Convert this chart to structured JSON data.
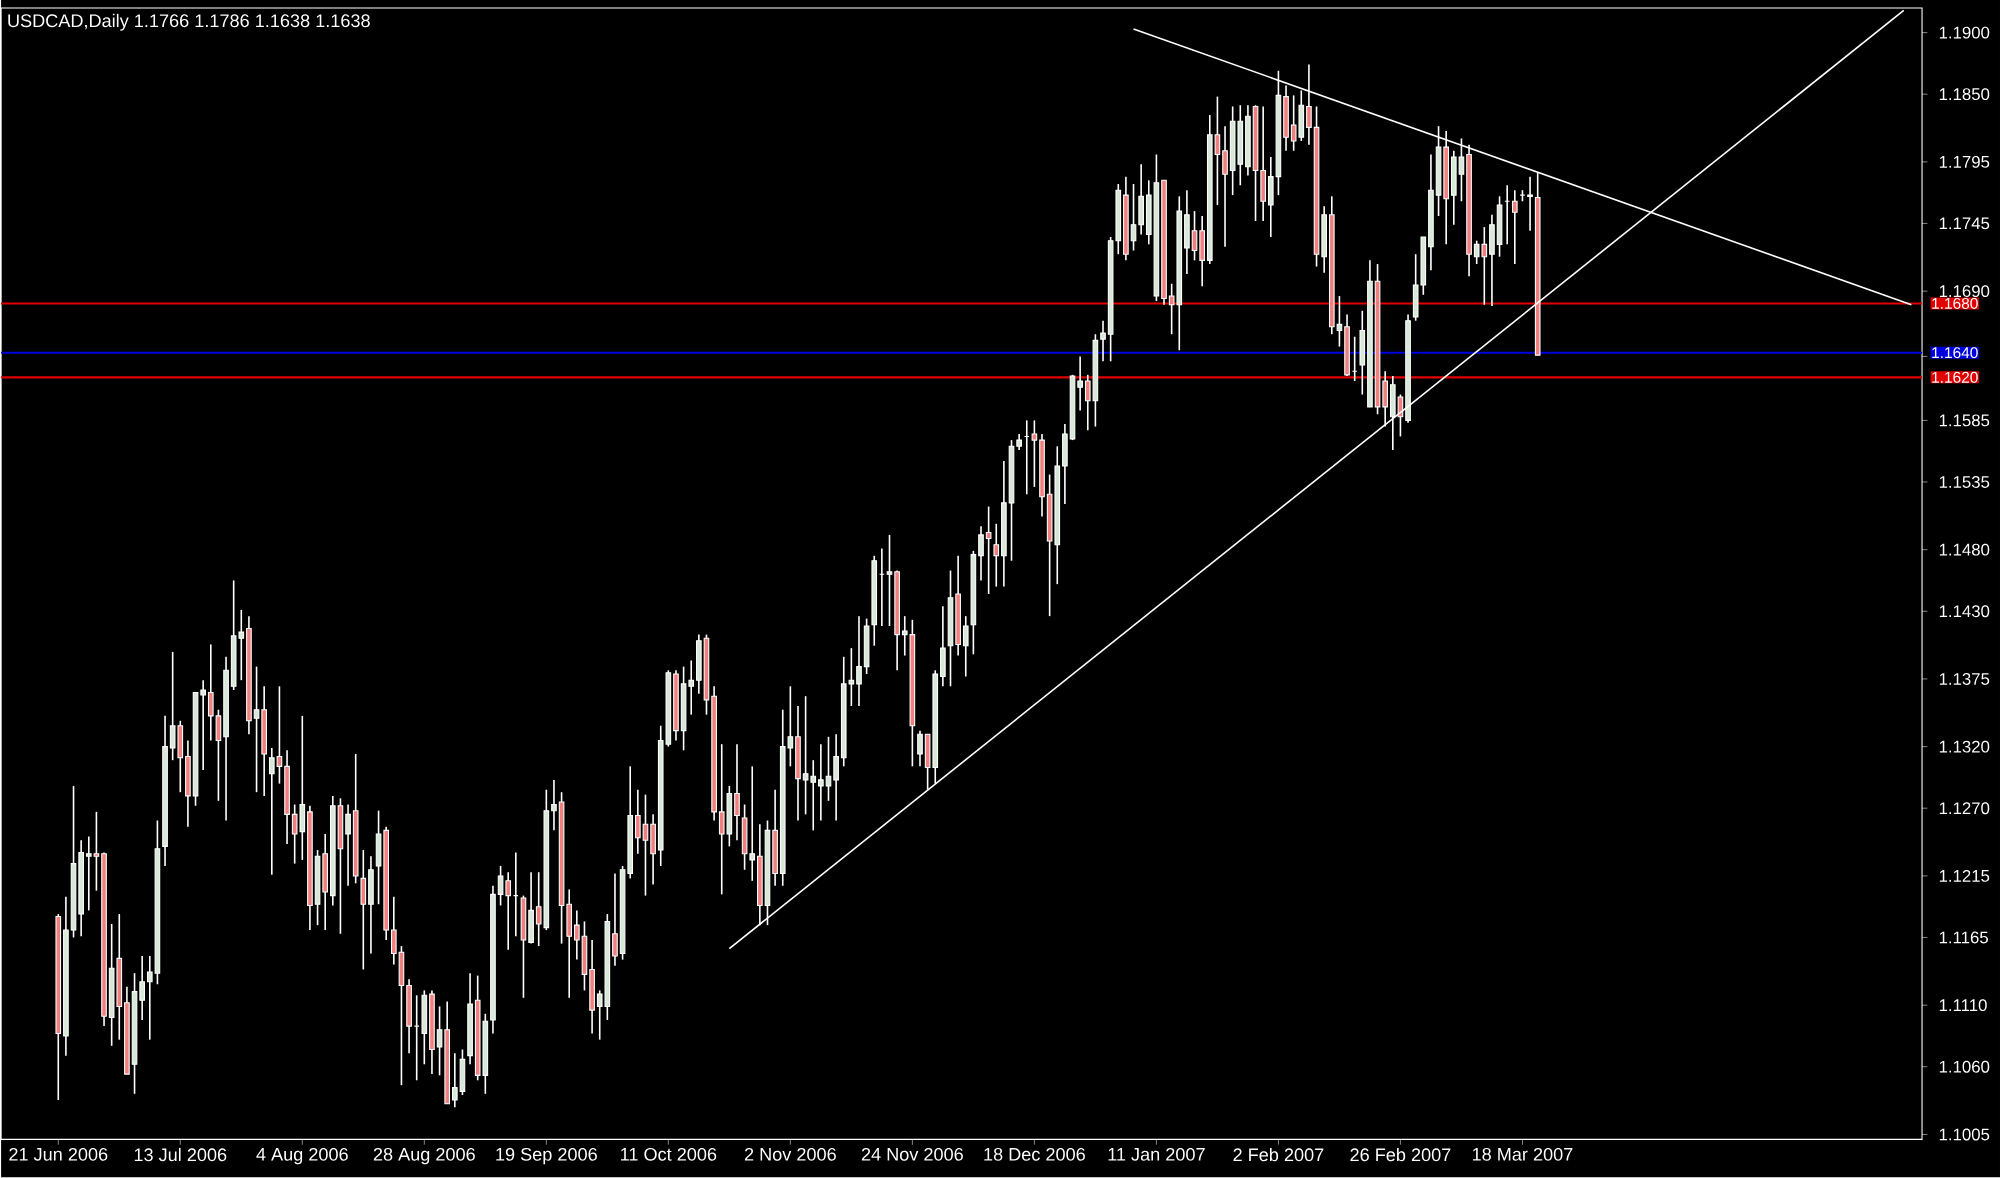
{
  "chart_data": {
    "type": "candlestick",
    "title": "USDCAD,Daily  1.1766 1.1786 1.1638 1.1638",
    "categories": [
      "21 Jun 2006",
      null,
      null,
      null,
      null,
      null,
      null,
      null,
      null,
      null,
      null,
      null,
      null,
      null,
      null,
      null,
      "13 Jul 2006",
      null,
      null,
      null,
      null,
      null,
      null,
      null,
      null,
      null,
      null,
      null,
      null,
      null,
      null,
      null,
      "4 Aug 2006",
      null,
      null,
      null,
      null,
      null,
      null,
      null,
      null,
      null,
      null,
      null,
      null,
      null,
      null,
      null,
      "28 Aug 2006",
      null,
      null,
      null,
      null,
      null,
      null,
      null,
      null,
      null,
      null,
      null,
      null,
      null,
      null,
      null,
      "19 Sep 2006",
      null,
      null,
      null,
      null,
      null,
      null,
      null,
      null,
      null,
      null,
      null,
      null,
      null,
      null,
      null,
      "11 Oct 2006",
      null,
      null,
      null,
      null,
      null,
      null,
      null,
      null,
      null,
      null,
      null,
      null,
      null,
      null,
      null,
      "2 Nov 2006",
      null,
      null,
      null,
      null,
      null,
      null,
      null,
      null,
      null,
      null,
      null,
      null,
      null,
      null,
      null,
      "24 Nov 2006",
      null,
      null,
      null,
      null,
      null,
      null,
      null,
      null,
      null,
      null,
      null,
      null,
      null,
      null,
      null,
      "18 Dec 2006",
      null,
      null,
      null,
      null,
      null,
      null,
      null,
      null,
      null,
      null,
      null,
      null,
      null,
      null,
      null,
      "11 Jan 2007",
      null,
      null,
      null,
      null,
      null,
      null,
      null,
      null,
      null,
      null,
      null,
      null,
      null,
      null,
      null,
      "2 Feb 2007",
      null,
      null,
      null,
      null,
      null,
      null,
      null,
      null,
      null,
      null,
      null,
      null,
      null,
      null,
      null,
      "26 Feb 2007",
      null,
      null,
      null,
      null,
      null,
      null,
      null,
      null,
      null,
      null,
      null,
      null,
      null,
      null,
      null,
      "18 Mar 2007",
      null,
      null,
      null,
      null,
      null,
      null,
      null,
      null,
      null,
      null,
      null,
      null,
      null,
      null,
      null,
      null,
      null,
      null,
      null,
      null,
      null,
      null,
      null,
      null,
      null,
      null,
      null,
      null,
      null,
      null,
      null,
      null,
      null,
      null,
      null,
      null,
      null,
      null,
      null,
      null,
      null,
      null,
      null,
      null,
      null,
      null,
      null,
      null,
      null,
      null,
      null
    ],
    "ohlc": [
      [
        1.1182,
        1.1184,
        1.1033,
        1.1087
      ],
      [
        1.1085,
        1.1198,
        1.1069,
        1.1171
      ],
      [
        1.1171,
        1.1288,
        1.1165,
        1.1225
      ],
      [
        1.1184,
        1.1244,
        1.1166,
        1.1234
      ],
      [
        1.1231,
        1.1247,
        1.1187,
        1.1233
      ],
      [
        1.1233,
        1.1267,
        1.1203,
        1.1231
      ],
      [
        1.1233,
        1.1234,
        1.1093,
        1.1101
      ],
      [
        1.11,
        1.1176,
        1.1077,
        1.114
      ],
      [
        1.1148,
        1.1184,
        1.1082,
        1.1109
      ],
      [
        1.1112,
        1.1125,
        1.1054,
        1.1054
      ],
      [
        1.1062,
        1.1136,
        1.1038,
        1.1121
      ],
      [
        1.1114,
        1.115,
        1.1098,
        1.1129
      ],
      [
        1.1129,
        1.115,
        1.1082,
        1.1137
      ],
      [
        1.1136,
        1.126,
        1.1127,
        1.1237
      ],
      [
        1.1239,
        1.1345,
        1.1223,
        1.132
      ],
      [
        1.1319,
        1.1397,
        1.1309,
        1.1337
      ],
      [
        1.1337,
        1.1341,
        1.1283,
        1.1311
      ],
      [
        1.1312,
        1.1325,
        1.1255,
        1.128
      ],
      [
        1.128,
        1.1364,
        1.1272,
        1.1364
      ],
      [
        1.1362,
        1.1374,
        1.1301,
        1.1366
      ],
      [
        1.1364,
        1.1403,
        1.1325,
        1.1345
      ],
      [
        1.1345,
        1.135,
        1.1276,
        1.1325
      ],
      [
        1.1328,
        1.1393,
        1.126,
        1.1382
      ],
      [
        1.1369,
        1.1455,
        1.1366,
        1.141
      ],
      [
        1.1408,
        1.1431,
        1.1374,
        1.1413
      ],
      [
        1.1416,
        1.1426,
        1.133,
        1.1341
      ],
      [
        1.1343,
        1.1385,
        1.1283,
        1.135
      ],
      [
        1.135,
        1.1369,
        1.128,
        1.1314
      ],
      [
        1.1298,
        1.1319,
        1.1216,
        1.1311
      ],
      [
        1.1312,
        1.1369,
        1.129,
        1.1304
      ],
      [
        1.1304,
        1.1317,
        1.1241,
        1.1265
      ],
      [
        1.1265,
        1.1273,
        1.1225,
        1.1249
      ],
      [
        1.1251,
        1.1345,
        1.1228,
        1.1273
      ],
      [
        1.1267,
        1.1272,
        1.1171,
        1.1191
      ],
      [
        1.1192,
        1.1236,
        1.1175,
        1.1231
      ],
      [
        1.1233,
        1.1249,
        1.1171,
        1.1202
      ],
      [
        1.1199,
        1.128,
        1.1191,
        1.1272
      ],
      [
        1.1272,
        1.1278,
        1.1168,
        1.1237
      ],
      [
        1.1249,
        1.1273,
        1.1207,
        1.1265
      ],
      [
        1.1268,
        1.1314,
        1.1209,
        1.1215
      ],
      [
        1.1213,
        1.1236,
        1.1139,
        1.1192
      ],
      [
        1.1192,
        1.1231,
        1.1152,
        1.122
      ],
      [
        1.1223,
        1.1268,
        1.1192,
        1.1249
      ],
      [
        1.1252,
        1.1255,
        1.1163,
        1.1171
      ],
      [
        1.1171,
        1.1198,
        1.1143,
        1.1152
      ],
      [
        1.1153,
        1.1158,
        1.1045,
        1.1126
      ],
      [
        1.1126,
        1.1131,
        1.1071,
        1.1093
      ],
      [
        1.1093,
        1.1118,
        1.1049,
        1.1093
      ],
      [
        1.1087,
        1.1122,
        1.1062,
        1.1118
      ],
      [
        1.1119,
        1.1122,
        1.1054,
        1.1074
      ],
      [
        1.1076,
        1.1109,
        1.1053,
        1.109
      ],
      [
        1.109,
        1.1113,
        1.103,
        1.103
      ],
      [
        1.1033,
        1.1071,
        1.1027,
        1.1043
      ],
      [
        1.104,
        1.1074,
        1.1037,
        1.1066
      ],
      [
        1.1069,
        1.1136,
        1.1062,
        1.1111
      ],
      [
        1.1114,
        1.1134,
        1.1049,
        1.1053
      ],
      [
        1.1053,
        1.1103,
        1.1038,
        1.1097
      ],
      [
        1.1098,
        1.1207,
        1.1087,
        1.12
      ],
      [
        1.12,
        1.1223,
        1.1191,
        1.1215
      ],
      [
        1.1211,
        1.1218,
        1.1155,
        1.1199
      ],
      [
        1.1199,
        1.1234,
        1.1166,
        1.1199
      ],
      [
        1.1197,
        1.1199,
        1.1116,
        1.1163
      ],
      [
        1.1161,
        1.1218,
        1.116,
        1.1187
      ],
      [
        1.119,
        1.1218,
        1.1158,
        1.1176
      ],
      [
        1.1173,
        1.1285,
        1.1171,
        1.1268
      ],
      [
        1.1268,
        1.1293,
        1.1252,
        1.1273
      ],
      [
        1.1275,
        1.1283,
        1.116,
        1.1191
      ],
      [
        1.1192,
        1.1204,
        1.1116,
        1.1166
      ],
      [
        1.1175,
        1.1187,
        1.1147,
        1.1163
      ],
      [
        1.1166,
        1.1178,
        1.1122,
        1.1135
      ],
      [
        1.1139,
        1.1163,
        1.1087,
        1.1106
      ],
      [
        1.1109,
        1.1122,
        1.1082,
        1.1119
      ],
      [
        1.1109,
        1.1184,
        1.1098,
        1.1178
      ],
      [
        1.1168,
        1.1217,
        1.1142,
        1.115
      ],
      [
        1.1152,
        1.1223,
        1.1147,
        1.122
      ],
      [
        1.1217,
        1.1304,
        1.1213,
        1.1264
      ],
      [
        1.1264,
        1.1285,
        1.1233,
        1.1246
      ],
      [
        1.1257,
        1.1281,
        1.1199,
        1.1244
      ],
      [
        1.1257,
        1.1265,
        1.1208,
        1.1233
      ],
      [
        1.1236,
        1.1337,
        1.1223,
        1.1325
      ],
      [
        1.1322,
        1.1382,
        1.132,
        1.138
      ],
      [
        1.1379,
        1.1382,
        1.1325,
        1.1333
      ],
      [
        1.1333,
        1.1385,
        1.1317,
        1.1371
      ],
      [
        1.1369,
        1.139,
        1.1346,
        1.1374
      ],
      [
        1.1374,
        1.1411,
        1.1363,
        1.1406
      ],
      [
        1.1408,
        1.1411,
        1.1346,
        1.1358
      ],
      [
        1.1361,
        1.1369,
        1.126,
        1.1267
      ],
      [
        1.1267,
        1.1322,
        1.12,
        1.1249
      ],
      [
        1.1249,
        1.1288,
        1.1239,
        1.1282
      ],
      [
        1.1282,
        1.1322,
        1.1244,
        1.1264
      ],
      [
        1.1262,
        1.1273,
        1.122,
        1.1233
      ],
      [
        1.1228,
        1.1304,
        1.1211,
        1.1233
      ],
      [
        1.1231,
        1.1257,
        1.1175,
        1.1191
      ],
      [
        1.1191,
        1.126,
        1.1175,
        1.1252
      ],
      [
        1.1252,
        1.1285,
        1.1207,
        1.1217
      ],
      [
        1.1217,
        1.135,
        1.1207,
        1.132
      ],
      [
        1.1319,
        1.1369,
        1.1304,
        1.1328
      ],
      [
        1.1328,
        1.1353,
        1.126,
        1.1294
      ],
      [
        1.1293,
        1.1361,
        1.1265,
        1.1298
      ],
      [
        1.1291,
        1.1309,
        1.1252,
        1.1296
      ],
      [
        1.1288,
        1.1322,
        1.126,
        1.1293
      ],
      [
        1.1288,
        1.1328,
        1.1276,
        1.1296
      ],
      [
        1.1293,
        1.133,
        1.126,
        1.1312
      ],
      [
        1.1311,
        1.1393,
        1.1304,
        1.1371
      ],
      [
        1.1371,
        1.14,
        1.1353,
        1.1374
      ],
      [
        1.1371,
        1.1426,
        1.1353,
        1.1385
      ],
      [
        1.1385,
        1.1424,
        1.1379,
        1.1418
      ],
      [
        1.1419,
        1.1475,
        1.1402,
        1.1471
      ],
      [
        1.146,
        1.1481,
        1.1418,
        1.146
      ],
      [
        1.146,
        1.1492,
        1.1418,
        1.1462
      ],
      [
        1.1462,
        1.1463,
        1.1382,
        1.1411
      ],
      [
        1.1411,
        1.1426,
        1.1394,
        1.1414
      ],
      [
        1.1411,
        1.1423,
        1.1304,
        1.1337
      ],
      [
        1.1314,
        1.1333,
        1.1304,
        1.133
      ],
      [
        1.133,
        1.133,
        1.1285,
        1.1303
      ],
      [
        1.1303,
        1.1382,
        1.129,
        1.1379
      ],
      [
        1.1377,
        1.1434,
        1.1369,
        1.14
      ],
      [
        1.1402,
        1.1463,
        1.1369,
        1.1441
      ],
      [
        1.1444,
        1.1475,
        1.1394,
        1.1403
      ],
      [
        1.1402,
        1.1426,
        1.1377,
        1.1418
      ],
      [
        1.1419,
        1.1479,
        1.1395,
        1.1476
      ],
      [
        1.1475,
        1.1499,
        1.1455,
        1.1492
      ],
      [
        1.1494,
        1.1515,
        1.1444,
        1.1489
      ],
      [
        1.1484,
        1.1501,
        1.145,
        1.1475
      ],
      [
        1.1475,
        1.1552,
        1.145,
        1.1518
      ],
      [
        1.1518,
        1.1569,
        1.1471,
        1.1564
      ],
      [
        1.1564,
        1.1574,
        1.1561,
        1.1569
      ],
      [
        1.1572,
        1.1585,
        1.1525,
        1.1572
      ],
      [
        1.1574,
        1.1585,
        1.1531,
        1.1569
      ],
      [
        1.1569,
        1.1574,
        1.1507,
        1.1523
      ],
      [
        1.1525,
        1.1541,
        1.1426,
        1.1487
      ],
      [
        1.1484,
        1.1564,
        1.1452,
        1.1548
      ],
      [
        1.1548,
        1.1582,
        1.1517,
        1.1574
      ],
      [
        1.157,
        1.1622,
        1.1569,
        1.1621
      ],
      [
        1.1612,
        1.1637,
        1.1593,
        1.1617
      ],
      [
        1.1617,
        1.1622,
        1.1577,
        1.1601
      ],
      [
        1.1601,
        1.1655,
        1.158,
        1.165
      ],
      [
        1.1651,
        1.1666,
        1.1633,
        1.1656
      ],
      [
        1.1655,
        1.1734,
        1.1633,
        1.1731
      ],
      [
        1.1731,
        1.1777,
        1.172,
        1.1772
      ],
      [
        1.1768,
        1.1783,
        1.1715,
        1.172
      ],
      [
        1.1731,
        1.1777,
        1.1723,
        1.1744
      ],
      [
        1.1744,
        1.1793,
        1.1736,
        1.1767
      ],
      [
        1.1736,
        1.178,
        1.1728,
        1.1768
      ],
      [
        1.1686,
        1.1801,
        1.1682,
        1.1778
      ],
      [
        1.178,
        1.178,
        1.1679,
        1.1684
      ],
      [
        1.1686,
        1.1696,
        1.1655,
        1.1679
      ],
      [
        1.1679,
        1.1767,
        1.1642,
        1.1755
      ],
      [
        1.1725,
        1.1772,
        1.1704,
        1.1752
      ],
      [
        1.1739,
        1.1755,
        1.1715,
        1.1723
      ],
      [
        1.1739,
        1.1751,
        1.1694,
        1.1715
      ],
      [
        1.1715,
        1.1833,
        1.1712,
        1.1817
      ],
      [
        1.1817,
        1.1848,
        1.176,
        1.1801
      ],
      [
        1.1804,
        1.1824,
        1.1726,
        1.1785
      ],
      [
        1.1788,
        1.184,
        1.1768,
        1.1828
      ],
      [
        1.1793,
        1.1841,
        1.1776,
        1.1828
      ],
      [
        1.1791,
        1.1841,
        1.1784,
        1.1832
      ],
      [
        1.184,
        1.1841,
        1.1747,
        1.1788
      ],
      [
        1.1788,
        1.184,
        1.1747,
        1.1763
      ],
      [
        1.176,
        1.1799,
        1.1734,
        1.1783
      ],
      [
        1.1783,
        1.1869,
        1.1768,
        1.1849
      ],
      [
        1.1848,
        1.1857,
        1.1804,
        1.1815
      ],
      [
        1.1825,
        1.1849,
        1.1804,
        1.1812
      ],
      [
        1.1815,
        1.1853,
        1.1812,
        1.1841
      ],
      [
        1.184,
        1.1874,
        1.1809,
        1.1823
      ],
      [
        1.1823,
        1.184,
        1.171,
        1.172
      ],
      [
        1.1718,
        1.1759,
        1.1705,
        1.1752
      ],
      [
        1.1752,
        1.1767,
        1.1655,
        1.1661
      ],
      [
        1.1658,
        1.1686,
        1.1645,
        1.1663
      ],
      [
        1.1661,
        1.1671,
        1.1621,
        1.1622
      ],
      [
        1.1625,
        1.1653,
        1.1617,
        1.1625
      ],
      [
        1.163,
        1.1674,
        1.1606,
        1.1658
      ],
      [
        1.1596,
        1.1715,
        1.1596,
        1.1698
      ],
      [
        1.1698,
        1.1712,
        1.159,
        1.1596
      ],
      [
        1.1617,
        1.1625,
        1.158,
        1.1596
      ],
      [
        1.1588,
        1.1621,
        1.1561,
        1.1614
      ],
      [
        1.1604,
        1.1606,
        1.1572,
        1.1588
      ],
      [
        1.1585,
        1.1671,
        1.1583,
        1.1666
      ],
      [
        1.1669,
        1.172,
        1.1666,
        1.1695
      ],
      [
        1.1695,
        1.1734,
        1.1687,
        1.1734
      ],
      [
        1.1726,
        1.1801,
        1.1707,
        1.1772
      ],
      [
        1.1768,
        1.1824,
        1.1751,
        1.1807
      ],
      [
        1.1807,
        1.182,
        1.1728,
        1.1765
      ],
      [
        1.1768,
        1.1804,
        1.1744,
        1.1799
      ],
      [
        1.1785,
        1.1814,
        1.1763,
        1.1799
      ],
      [
        1.1801,
        1.1809,
        1.1702,
        1.172
      ],
      [
        1.1718,
        1.1731,
        1.1712,
        1.1728
      ],
      [
        1.1728,
        1.1742,
        1.1679,
        1.1718
      ],
      [
        1.172,
        1.1752,
        1.1678,
        1.1744
      ],
      [
        1.1728,
        1.1767,
        1.1718,
        1.176
      ],
      [
        1.1763,
        1.1776,
        1.1728,
        1.1763
      ],
      [
        1.1763,
        1.1772,
        1.1712,
        1.1754
      ],
      [
        1.1768,
        1.1772,
        1.1763,
        1.1768
      ],
      [
        1.1767,
        1.1783,
        1.1739,
        1.1768
      ],
      [
        1.1766,
        1.1786,
        1.1638,
        1.1638
      ],
      null,
      null,
      null,
      null,
      null,
      null,
      null,
      null,
      null,
      null,
      null,
      null,
      null,
      null,
      null,
      null,
      null,
      null,
      null,
      null,
      null,
      null,
      null,
      null,
      null,
      null,
      null,
      null,
      null,
      null,
      null,
      null,
      null,
      null,
      null,
      null,
      null,
      null,
      null,
      null,
      null,
      null,
      null,
      null,
      null,
      null,
      null,
      null,
      null
    ],
    "series": [
      {
        "type": "line",
        "color": "#ffffff",
        "values": [
          null,
          null,
          null,
          null,
          null,
          null,
          null,
          null,
          null,
          null,
          null,
          null,
          null,
          null,
          null,
          null,
          null,
          null,
          null,
          null,
          null,
          null,
          null,
          null,
          null,
          null,
          null,
          null,
          null,
          null,
          null,
          null,
          null,
          null,
          null,
          null,
          null,
          null,
          null,
          null,
          null,
          null,
          null,
          null,
          null,
          null,
          null,
          null,
          null,
          null,
          null,
          null,
          null,
          null,
          null,
          null,
          null,
          null,
          null,
          null,
          null,
          null,
          null,
          null,
          null,
          null,
          null,
          null,
          null,
          null,
          null,
          null,
          null,
          null,
          null,
          null,
          null,
          null,
          null,
          null,
          null,
          null,
          null,
          null,
          null,
          null,
          null,
          null,
          null,
          null,
          null,
          null,
          null,
          null,
          null,
          null,
          null,
          null,
          null,
          null,
          null,
          null,
          null,
          null,
          null,
          null,
          null,
          null,
          null,
          null,
          null,
          null,
          null,
          null,
          null,
          null,
          null,
          null,
          null,
          null,
          null,
          null,
          null,
          null,
          null,
          null,
          null,
          null,
          null,
          null,
          null,
          null,
          null,
          null,
          null,
          null,
          null,
          null,
          null,
          null,
          null,
          1.1903,
          null,
          null,
          null,
          null,
          null,
          null,
          null,
          null,
          null,
          null,
          null,
          null,
          null,
          null,
          null,
          null,
          null,
          null,
          null,
          null,
          null,
          null,
          null,
          null,
          null,
          null,
          null,
          null,
          null,
          null,
          null,
          null,
          null,
          null,
          null,
          null,
          null,
          null,
          null,
          null,
          null,
          null,
          null,
          null,
          null,
          null,
          null,
          null,
          null,
          null,
          null,
          null,
          null,
          null,
          null,
          null,
          null,
          null,
          null,
          null,
          null,
          null,
          null,
          null,
          null,
          null,
          null,
          null,
          null,
          null,
          null,
          null,
          null,
          null,
          null,
          null,
          null,
          null,
          null,
          null,
          null,
          null,
          null,
          null,
          null,
          null,
          null,
          null,
          null,
          null,
          null,
          null,
          null,
          null,
          null,
          null,
          null,
          null,
          null,
          null,
          null,
          1.1679
        ]
      },
      {
        "type": "line",
        "color": "#ffffff",
        "values": [
          null,
          null,
          null,
          null,
          null,
          null,
          null,
          null,
          null,
          null,
          null,
          null,
          null,
          null,
          null,
          null,
          null,
          null,
          null,
          null,
          null,
          null,
          null,
          null,
          null,
          null,
          null,
          null,
          null,
          null,
          null,
          null,
          null,
          null,
          null,
          null,
          null,
          null,
          null,
          null,
          null,
          null,
          null,
          null,
          null,
          null,
          null,
          null,
          null,
          null,
          null,
          null,
          null,
          null,
          null,
          null,
          null,
          null,
          null,
          null,
          null,
          null,
          null,
          null,
          null,
          null,
          null,
          null,
          null,
          null,
          null,
          null,
          null,
          null,
          null,
          null,
          null,
          null,
          null,
          null,
          null,
          null,
          null,
          null,
          null,
          null,
          null,
          null,
          1.1156,
          null,
          null,
          null,
          null,
          null,
          null,
          null,
          null,
          null,
          null,
          null,
          null,
          null,
          null,
          null,
          null,
          null,
          null,
          null,
          null,
          null,
          null,
          null,
          null,
          null,
          null,
          null,
          null,
          null,
          null,
          null,
          null,
          null,
          null,
          null,
          null,
          null,
          null,
          null,
          null,
          null,
          null,
          null,
          null,
          null,
          null,
          null,
          null,
          null,
          null,
          null,
          null,
          null,
          null,
          null,
          null,
          null,
          null,
          null,
          null,
          null,
          null,
          null,
          null,
          null,
          null,
          null,
          null,
          null,
          null,
          null,
          null,
          null,
          null,
          null,
          null,
          null,
          null,
          null,
          null,
          null,
          null,
          null,
          null,
          null,
          null,
          null,
          null,
          null,
          null,
          null,
          null,
          null,
          null,
          null,
          null,
          null,
          null,
          null,
          null,
          null,
          null,
          null,
          null,
          null,
          null,
          null,
          null,
          null,
          null,
          null,
          null,
          null,
          null,
          null,
          null,
          null,
          null,
          null,
          null,
          null,
          null,
          null,
          null,
          null,
          null,
          null,
          null,
          null,
          null,
          null,
          null,
          null,
          null,
          null,
          null,
          null,
          null,
          null,
          null,
          null,
          null,
          null,
          null,
          null,
          null,
          null,
          null,
          null,
          null,
          null,
          null,
          null,
          1.1918,
          null
        ]
      }
    ],
    "ylim": [
      1.1001,
      1.192
    ],
    "yticks": [
      {
        "value": 1.1005,
        "label": "1.1005"
      },
      {
        "value": 1.106,
        "label": "1.1060"
      },
      {
        "value": 1.111,
        "label": "1.1110"
      },
      {
        "value": 1.1165,
        "label": "1.1165"
      },
      {
        "value": 1.1215,
        "label": "1.1215"
      },
      {
        "value": 1.127,
        "label": "1.1270"
      },
      {
        "value": 1.132,
        "label": "1.1320"
      },
      {
        "value": 1.1375,
        "label": "1.1375"
      },
      {
        "value": 1.143,
        "label": "1.1430"
      },
      {
        "value": 1.148,
        "label": "1.1480"
      },
      {
        "value": 1.1535,
        "label": "1.1535"
      },
      {
        "value": 1.1585,
        "label": "1.1585"
      },
      {
        "value": 1.1637,
        "label": null
      },
      {
        "value": 1.169,
        "label": "1.1690"
      },
      {
        "value": 1.1745,
        "label": "1.1745"
      },
      {
        "value": 1.1795,
        "label": "1.1795"
      },
      {
        "value": 1.185,
        "label": "1.1850"
      },
      {
        "value": 1.19,
        "label": "1.1900"
      }
    ],
    "ref_lines": [
      {
        "axis": "y",
        "value": 1.168,
        "label": "1.1680",
        "color": "#e00000"
      },
      {
        "axis": "y",
        "value": 1.164,
        "label": "1.1640",
        "color": "#0000e0"
      },
      {
        "axis": "y",
        "value": 1.162,
        "label": "1.1620",
        "color": "#e00000"
      }
    ]
  }
}
